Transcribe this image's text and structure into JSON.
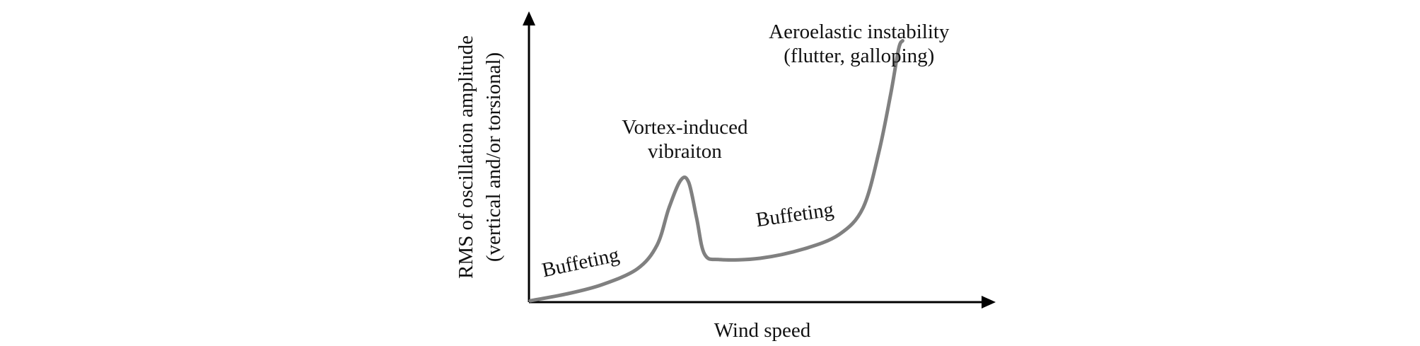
{
  "chart_data": {
    "type": "line",
    "title": "",
    "xlabel": "Wind speed",
    "ylabel_lines": [
      "RMS of oscillation amplitude",
      "(vertical and/or torsional)"
    ],
    "x_ticks": "none",
    "y_ticks": "none",
    "grid": false,
    "legend": "none",
    "xlim": [
      0,
      100
    ],
    "ylim": [
      0,
      100
    ],
    "series": [
      {
        "color": "#808080",
        "points": [
          [
            0,
            0
          ],
          [
            9,
            2.5
          ],
          [
            18,
            6
          ],
          [
            27,
            12
          ],
          [
            32,
            21
          ],
          [
            35,
            35
          ],
          [
            38,
            45.5
          ],
          [
            40,
            44.5
          ],
          [
            42,
            31
          ],
          [
            44,
            17.5
          ],
          [
            48,
            15.5
          ],
          [
            58,
            16
          ],
          [
            69,
            19.5
          ],
          [
            78,
            25
          ],
          [
            84,
            35
          ],
          [
            88,
            56
          ],
          [
            91,
            78
          ],
          [
            93,
            95
          ],
          [
            94,
            98
          ]
        ]
      }
    ],
    "annotations": [
      {
        "id": "buffeting-low",
        "text": "Buffeting",
        "x": 13,
        "y": 12,
        "rotate": -12
      },
      {
        "id": "vortex",
        "lines": [
          "Vortex-induced",
          "vibraiton"
        ],
        "x": 39,
        "y": 63
      },
      {
        "id": "buffeting-high",
        "text": "Buffeting",
        "x": 67,
        "y": 30,
        "rotate": -8
      },
      {
        "id": "instability",
        "lines": [
          "Aeroelastic instability",
          "(flutter, galloping)"
        ],
        "x": 83,
        "y": 99
      }
    ],
    "colors": {
      "axis": "#000000",
      "curve": "#808080",
      "text": "#111111"
    }
  }
}
